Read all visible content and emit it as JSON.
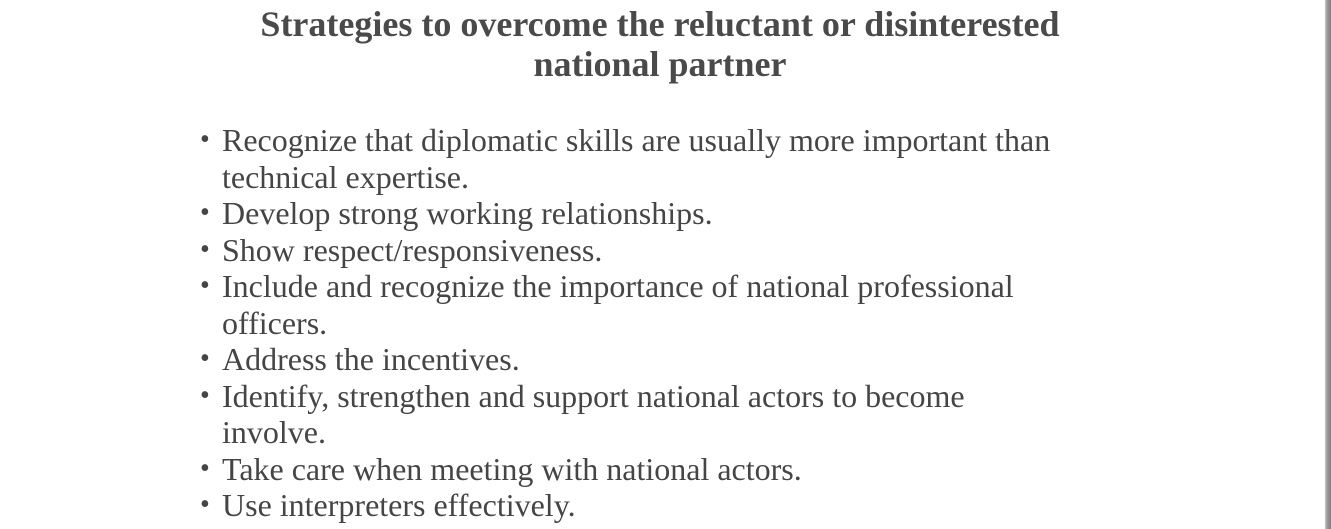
{
  "slide": {
    "title_lines": [
      "Strategies to overcome the reluctant or disinterested",
      "national partner"
    ],
    "bullet_symbol": "•",
    "bullets": [
      {
        "lines": [
          "Recognize that diplomatic skills are usually more important than",
          "technical expertise."
        ]
      },
      {
        "lines": [
          "Develop strong working relationships."
        ]
      },
      {
        "lines": [
          "Show respect/responsiveness."
        ]
      },
      {
        "lines": [
          "Include and recognize the importance of national professional",
          "officers."
        ]
      },
      {
        "lines": [
          "Address the incentives."
        ]
      },
      {
        "lines": [
          "Identify, strengthen and support national actors to become",
          "involve."
        ]
      },
      {
        "lines": [
          "Take care when meeting with national actors."
        ]
      },
      {
        "lines": [
          "Use interpreters effectively."
        ]
      }
    ],
    "colors": {
      "title": "#4a4a4a",
      "text": "#454545",
      "background": "#ffffff"
    }
  }
}
